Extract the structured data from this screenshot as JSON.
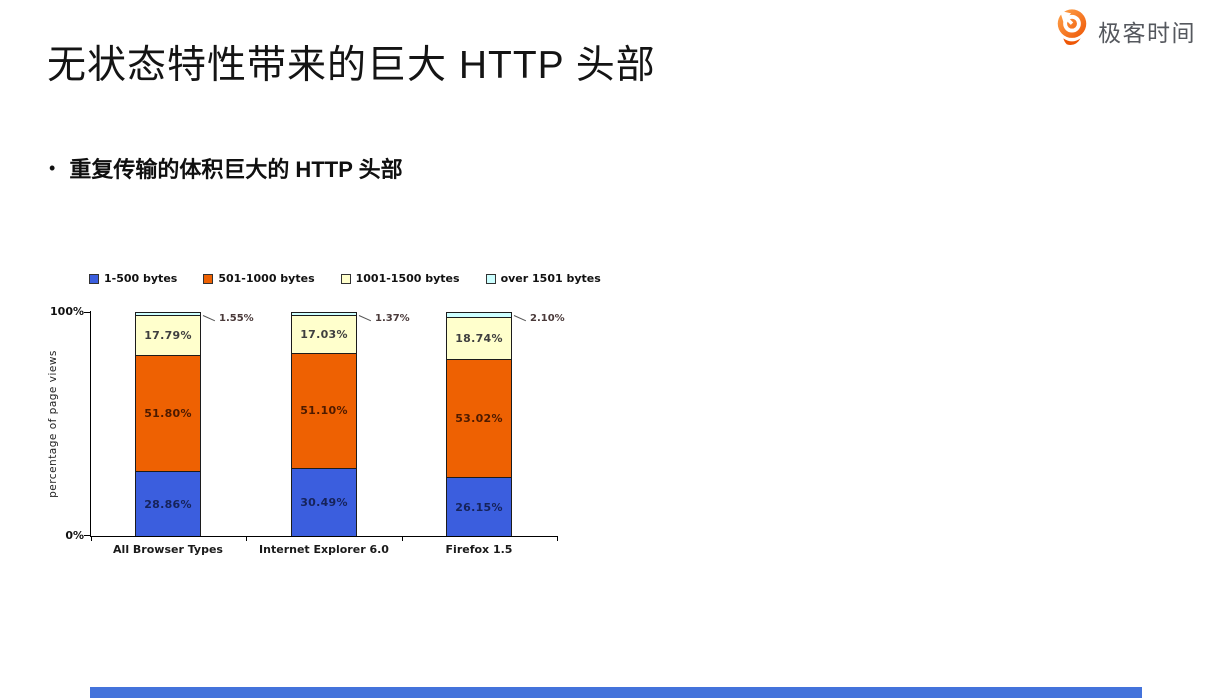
{
  "page": {
    "background": "#ffffff"
  },
  "header": {
    "title": "无状态特性带来的巨大 HTTP 头部",
    "logo": {
      "text": "极客时间",
      "icon": "geektime-logo-icon",
      "text_color": "#55585E",
      "icon_color": "#F05A00"
    }
  },
  "bullet": {
    "marker": "•",
    "text": "重复传输的体积巨大的 HTTP 头部"
  },
  "chart_data": {
    "type": "bar",
    "subtype": "stacked-100-percent",
    "title": "",
    "xlabel": "",
    "ylabel": "percentage of page views",
    "ylim": [
      0,
      100
    ],
    "yticks": [
      "100%",
      "0%"
    ],
    "grid": false,
    "legend_position": "top",
    "categories": [
      "All Browser Types",
      "Internet Explorer 6.0",
      "Firefox 1.5"
    ],
    "series": [
      {
        "name": "1-500 bytes",
        "color": "#3B5EDE",
        "label_color": "#16235a",
        "values": [
          28.86,
          30.49,
          26.15
        ],
        "labels": [
          "28.86%",
          "30.49%",
          "26.15%"
        ]
      },
      {
        "name": "501-1000 bytes",
        "color": "#EE6102",
        "label_color": "#4d1a00",
        "values": [
          51.8,
          51.1,
          53.02
        ],
        "labels": [
          "51.80%",
          "51.10%",
          "53.02%"
        ]
      },
      {
        "name": "1001-1500 bytes",
        "color": "#FFFFCC",
        "label_color": "#3f3f3f",
        "values": [
          17.79,
          17.03,
          18.74
        ],
        "labels": [
          "17.79%",
          "17.03%",
          "18.74%"
        ]
      },
      {
        "name": "over 1501 bytes",
        "color": "#CCFFFF",
        "label_color": "#4a3a3a",
        "values": [
          1.55,
          1.37,
          2.1
        ],
        "labels": [
          "1.55%",
          "1.37%",
          "2.10%"
        ],
        "label_position": "callout"
      }
    ]
  },
  "footer": {
    "progress_color": "#4473DB"
  }
}
